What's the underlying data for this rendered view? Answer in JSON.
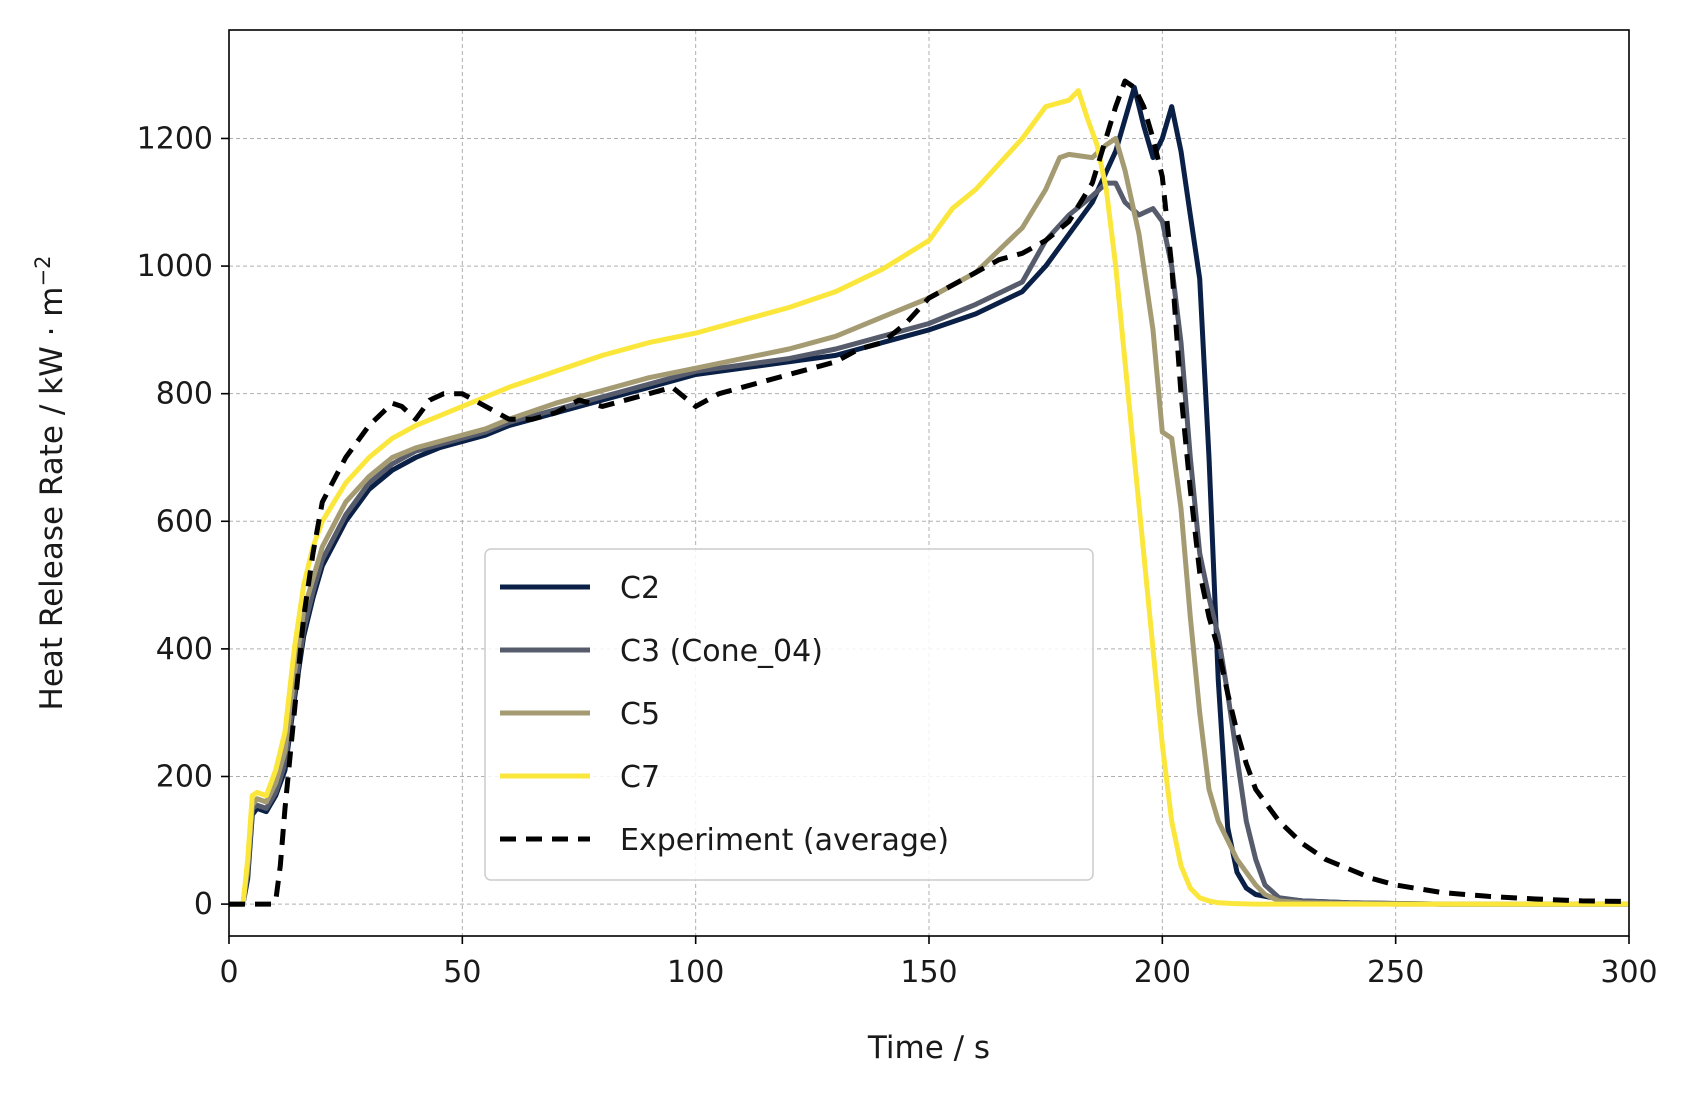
{
  "chart_data": {
    "type": "line",
    "title": "",
    "xlabel": "Time / s",
    "ylabel": "Heat Release Rate / kW · m",
    "ylabel_unit_exponent": "−2",
    "xlim": [
      0,
      300
    ],
    "ylim": [
      -50,
      1370
    ],
    "xticks": [
      0,
      50,
      100,
      150,
      200,
      250,
      300
    ],
    "yticks": [
      0,
      200,
      400,
      600,
      800,
      1000,
      1200
    ],
    "grid": true,
    "legend_position": "lower-center",
    "series": [
      {
        "name": "C2",
        "color": "#0b2046",
        "style": "solid",
        "x": [
          0,
          3,
          4,
          5,
          6,
          8,
          10,
          12,
          14,
          16,
          18,
          20,
          25,
          30,
          35,
          40,
          45,
          50,
          55,
          60,
          70,
          80,
          90,
          100,
          110,
          120,
          130,
          140,
          150,
          160,
          170,
          175,
          180,
          185,
          190,
          192,
          194,
          196,
          198,
          200,
          202,
          204,
          206,
          208,
          210,
          212,
          214,
          216,
          218,
          220,
          225,
          230,
          240,
          250,
          260,
          280,
          300
        ],
        "y": [
          0,
          0,
          40,
          140,
          150,
          145,
          170,
          210,
          320,
          420,
          480,
          530,
          600,
          650,
          680,
          700,
          715,
          725,
          735,
          750,
          770,
          790,
          810,
          830,
          840,
          850,
          860,
          880,
          900,
          925,
          960,
          1000,
          1050,
          1100,
          1180,
          1230,
          1280,
          1220,
          1170,
          1200,
          1250,
          1180,
          1080,
          980,
          700,
          350,
          120,
          50,
          25,
          15,
          8,
          5,
          2,
          1,
          0,
          0,
          0
        ]
      },
      {
        "name": "C3 (Cone_04)",
        "color": "#565c6c",
        "style": "solid",
        "x": [
          0,
          3,
          4,
          5,
          6,
          8,
          10,
          12,
          14,
          16,
          18,
          20,
          25,
          30,
          35,
          40,
          45,
          50,
          55,
          60,
          70,
          80,
          90,
          100,
          110,
          120,
          130,
          140,
          150,
          160,
          170,
          175,
          180,
          185,
          188,
          190,
          192,
          195,
          198,
          200,
          202,
          204,
          206,
          208,
          210,
          212,
          214,
          216,
          218,
          220,
          222,
          225,
          230,
          240,
          250,
          260,
          280,
          300
        ],
        "y": [
          0,
          0,
          50,
          150,
          155,
          150,
          175,
          220,
          330,
          430,
          490,
          540,
          610,
          660,
          690,
          710,
          720,
          730,
          740,
          755,
          775,
          795,
          815,
          835,
          845,
          855,
          870,
          890,
          910,
          940,
          975,
          1040,
          1080,
          1110,
          1130,
          1130,
          1100,
          1080,
          1090,
          1070,
          1000,
          880,
          700,
          550,
          480,
          420,
          330,
          230,
          130,
          70,
          30,
          10,
          5,
          2,
          1,
          0,
          0,
          0
        ]
      },
      {
        "name": "C5",
        "color": "#a59b73",
        "style": "solid",
        "x": [
          0,
          3,
          4,
          5,
          6,
          8,
          10,
          12,
          14,
          16,
          18,
          20,
          25,
          30,
          35,
          40,
          45,
          50,
          55,
          60,
          70,
          80,
          90,
          100,
          110,
          120,
          130,
          140,
          150,
          160,
          170,
          175,
          178,
          180,
          185,
          188,
          190,
          192,
          195,
          198,
          200,
          202,
          204,
          206,
          208,
          210,
          212,
          214,
          216,
          218,
          220,
          222,
          225,
          230,
          240,
          250,
          260,
          280,
          300
        ],
        "y": [
          0,
          0,
          60,
          155,
          165,
          160,
          190,
          240,
          360,
          460,
          510,
          560,
          630,
          670,
          700,
          715,
          725,
          735,
          745,
          760,
          785,
          805,
          825,
          840,
          855,
          870,
          890,
          920,
          950,
          990,
          1060,
          1120,
          1170,
          1175,
          1170,
          1190,
          1200,
          1150,
          1050,
          900,
          740,
          730,
          620,
          450,
          300,
          180,
          130,
          100,
          70,
          50,
          30,
          15,
          5,
          2,
          1,
          0,
          0,
          0,
          0
        ]
      },
      {
        "name": "C7",
        "color": "#fbe73c",
        "style": "solid",
        "x": [
          0,
          3,
          4,
          5,
          6,
          8,
          10,
          12,
          14,
          16,
          18,
          20,
          25,
          30,
          35,
          40,
          45,
          50,
          55,
          60,
          70,
          80,
          90,
          100,
          110,
          120,
          130,
          140,
          150,
          155,
          160,
          165,
          170,
          175,
          180,
          182,
          184,
          186,
          188,
          190,
          192,
          194,
          196,
          198,
          200,
          202,
          204,
          206,
          208,
          210,
          212,
          215,
          220,
          230,
          240,
          250,
          260,
          280,
          300
        ],
        "y": [
          0,
          0,
          70,
          170,
          175,
          170,
          210,
          270,
          400,
          500,
          560,
          600,
          660,
          700,
          730,
          750,
          765,
          780,
          795,
          810,
          835,
          860,
          880,
          895,
          915,
          935,
          960,
          995,
          1040,
          1090,
          1120,
          1160,
          1200,
          1250,
          1260,
          1275,
          1230,
          1190,
          1120,
          1000,
          850,
          700,
          550,
          400,
          250,
          130,
          60,
          25,
          10,
          5,
          2,
          1,
          0,
          0,
          0,
          0,
          0,
          0,
          0
        ]
      },
      {
        "name": "Experiment (average)",
        "color": "#000000",
        "style": "dashed",
        "x": [
          0,
          5,
          9,
          10,
          11,
          12,
          14,
          16,
          18,
          20,
          25,
          30,
          35,
          37,
          40,
          43,
          46,
          50,
          55,
          60,
          65,
          70,
          75,
          80,
          85,
          90,
          95,
          100,
          105,
          110,
          115,
          120,
          125,
          130,
          135,
          140,
          145,
          150,
          155,
          160,
          165,
          170,
          175,
          180,
          185,
          190,
          192,
          194,
          196,
          198,
          200,
          202,
          204,
          206,
          208,
          210,
          212,
          214,
          216,
          218,
          220,
          225,
          230,
          235,
          240,
          245,
          250,
          260,
          270,
          280,
          290,
          300
        ],
        "y": [
          0,
          0,
          0,
          5,
          60,
          150,
          300,
          450,
          550,
          630,
          700,
          750,
          785,
          780,
          760,
          790,
          800,
          800,
          780,
          760,
          760,
          770,
          790,
          780,
          790,
          800,
          810,
          780,
          800,
          810,
          820,
          830,
          840,
          850,
          870,
          880,
          910,
          950,
          970,
          990,
          1010,
          1020,
          1040,
          1070,
          1130,
          1250,
          1290,
          1280,
          1250,
          1200,
          1140,
          1000,
          800,
          650,
          520,
          450,
          400,
          330,
          270,
          220,
          180,
          130,
          95,
          70,
          55,
          40,
          30,
          18,
          12,
          8,
          5,
          4
        ]
      }
    ]
  }
}
